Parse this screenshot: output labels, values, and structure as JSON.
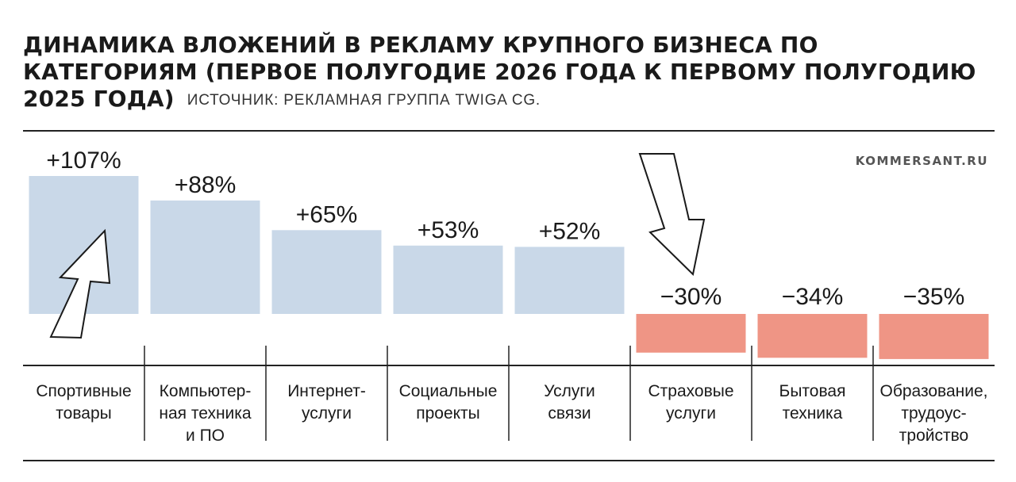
{
  "header": {
    "title": "ДИНАМИКА ВЛОЖЕНИЙ В РЕКЛАМУ КРУПНОГО БИЗНЕСА ПО КАТЕГОРИЯМ (ПЕРВОЕ ПОЛУГОДИЕ 2026 ГОДА К ПЕРВОМУ ПОЛУГОДИЮ 2025 ГОДА)",
    "source": "ИСТОЧНИК: РЕКЛАМНАЯ ГРУППА TWIGA CG.",
    "brand": "KOMMERSANT.RU"
  },
  "colors": {
    "positive": "#c9d8e8",
    "negative": "#ef9585",
    "rule": "#222222"
  },
  "icons": [
    "arrow-up-icon",
    "arrow-down-icon"
  ],
  "chart_data": {
    "type": "bar",
    "title": "ДИНАМИКА ВЛОЖЕНИЙ В РЕКЛАМУ КРУПНОГО БИЗНЕСА ПО КАТЕГОРИЯМ (ПЕРВОЕ ПОЛУГОДИЕ 2026 ГОДА К ПЕРВОМУ ПОЛУГОДИЮ 2025 ГОДА)",
    "unit": "%",
    "categories": [
      [
        "Спортивные",
        "товары"
      ],
      [
        "Компьютер-",
        "ная техника",
        "и ПО"
      ],
      [
        "Интернет-",
        "услуги"
      ],
      [
        "Социальные",
        "проекты"
      ],
      [
        "Услуги",
        "связи"
      ],
      [
        "Страховые",
        "услуги"
      ],
      [
        "Бытовая",
        "техника"
      ],
      [
        "Образование,",
        "трудоус-",
        "тройство"
      ]
    ],
    "values": [
      107,
      88,
      65,
      53,
      52,
      -30,
      -34,
      -35
    ],
    "value_labels": [
      "+107%",
      "+88%",
      "+65%",
      "+53%",
      "+52%",
      "−30%",
      "−34%",
      "−35%"
    ]
  }
}
